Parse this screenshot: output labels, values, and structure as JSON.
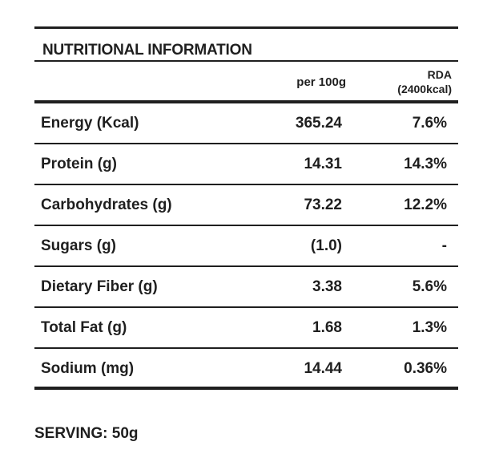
{
  "title": "NUTRITIONAL INFORMATION",
  "columns": {
    "per_100g": "per 100g",
    "rda_line1": "RDA",
    "rda_line2": "(2400kcal)"
  },
  "rows": [
    {
      "label": "Energy (Kcal)",
      "per_100g": "365.24",
      "rda": "7.6%"
    },
    {
      "label": "Protein (g)",
      "per_100g": "14.31",
      "rda": "14.3%"
    },
    {
      "label": "Carbohydrates (g)",
      "per_100g": "73.22",
      "rda": "12.2%"
    },
    {
      "label": "Sugars (g)",
      "per_100g": "(1.0)",
      "rda": "-"
    },
    {
      "label": "Dietary Fiber (g)",
      "per_100g": "3.38",
      "rda": "5.6%"
    },
    {
      "label": "Total Fat (g)",
      "per_100g": "1.68",
      "rda": "1.3%"
    },
    {
      "label": "Sodium (mg)",
      "per_100g": "14.44",
      "rda": "0.36%"
    }
  ],
  "serving": "SERVING: 50g"
}
